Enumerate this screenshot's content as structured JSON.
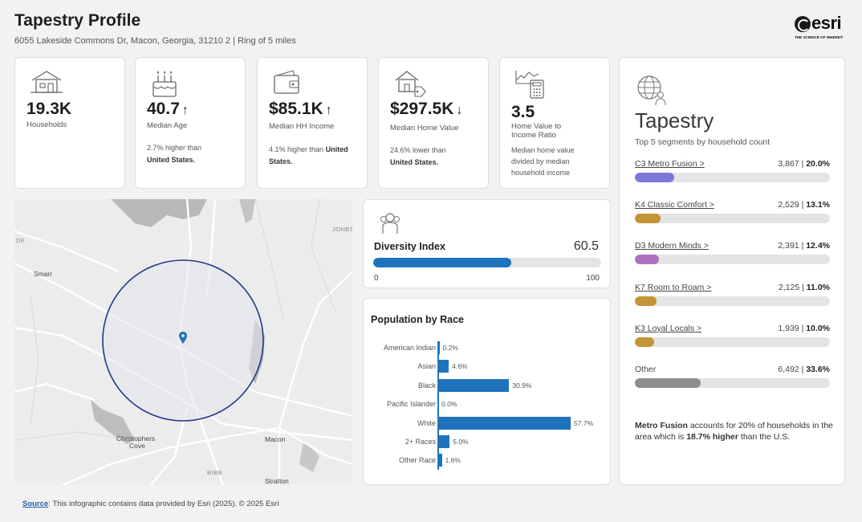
{
  "header": {
    "title": "Tapestry Profile",
    "subtitle": "6055 Lakeside Commons Dr, Macon, Georgia, 31210 2 | Ring of 5 miles",
    "logo_word": "esri",
    "logo_tagline": "THE SCIENCE OF WHERE®"
  },
  "stats": [
    {
      "icon": "house-icon",
      "value": "19.3K",
      "arrow": "",
      "label": "Households",
      "note": "",
      "note_bold": ""
    },
    {
      "icon": "birthday-cake-icon",
      "value": "40.7",
      "arrow": "↑",
      "label": "Median Age",
      "note": "2.7% higher than",
      "note_bold": "United States."
    },
    {
      "icon": "wallet-icon",
      "value": "$85.1K",
      "arrow": "↑",
      "label": "Median HH Income",
      "note": "4.1% higher than",
      "note_bold": "United States."
    },
    {
      "icon": "house-tag-icon",
      "value": "$297.5K",
      "arrow": "↓",
      "label": "Median Home Value",
      "note": "24.6% lower than",
      "note_bold": "United States."
    },
    {
      "icon": "calculator-chart-icon",
      "value": "3.5",
      "arrow": "",
      "label": "Home Value to Income Ratio",
      "note": "Median home value divided by median household income",
      "note_bold": ""
    }
  ],
  "map": {
    "labels": {
      "smarr": "Smarr",
      "christophers": "Christophers",
      "cove": "Cove",
      "macon": "Macon",
      "stratton": "Stratton",
      "jones": "JONES",
      "bibb": "BIBB",
      "de": "DE"
    },
    "ring_color": "#1e3a8a",
    "pin_color": "#1f73bd"
  },
  "diversity": {
    "icon": "people-icon",
    "title": "Diversity Index",
    "value": 60.5,
    "value_text": "60.5",
    "min": "0",
    "max": "100",
    "fill_color": "#1f73bd"
  },
  "race": {
    "title": "Population by Race",
    "chart_data": {
      "type": "bar",
      "orientation": "horizontal",
      "categories": [
        "American Indian",
        "Asian",
        "Black",
        "Pacific Islander",
        "White",
        "2+ Races",
        "Other Race"
      ],
      "values": [
        0.2,
        4.6,
        30.9,
        0.0,
        57.7,
        5.0,
        1.6
      ],
      "value_labels": [
        "0.2%",
        "4.6%",
        "30.9%",
        "0.0%",
        "57.7%",
        "5.0%",
        "1.6%"
      ],
      "title": "Population by Race",
      "xlim": [
        0,
        100
      ],
      "color": "#1f73bd"
    }
  },
  "tapestry": {
    "icon": "globe-person-icon",
    "title": "Tapestry",
    "subtitle": "Top 5 segments by household count",
    "segments": [
      {
        "name": "C3 Metro Fusion >",
        "count": "3,867",
        "pct": "20.0%",
        "value": 20.0,
        "color": "#7b78d6",
        "link": true
      },
      {
        "name": "K4 Classic Comfort >",
        "count": "2,529",
        "pct": "13.1%",
        "value": 13.1,
        "color": "#c49536",
        "link": true
      },
      {
        "name": "D3 Modern Minds >",
        "count": "2,391",
        "pct": "12.4%",
        "value": 12.4,
        "color": "#b06fbf",
        "link": true
      },
      {
        "name": "K7 Room to Roam >",
        "count": "2,125",
        "pct": "11.0%",
        "value": 11.0,
        "color": "#c49536",
        "link": true
      },
      {
        "name": "K3 Loyal Locals >",
        "count": "1,939",
        "pct": "10.0%",
        "value": 10.0,
        "color": "#c49536",
        "link": true
      },
      {
        "name": "Other",
        "count": "6,492",
        "pct": "33.6%",
        "value": 33.6,
        "color": "#8e8e8e",
        "link": false
      }
    ],
    "note_bold": "Metro Fusion",
    "note_mid": " accounts for 20% of households in the area which is ",
    "note_bold2": "18.7% higher",
    "note_end": " than the U.S."
  },
  "footer": {
    "source_label": "Source",
    "text": ": This infographic contains data provided by Esri (2025). © 2025 Esri"
  }
}
